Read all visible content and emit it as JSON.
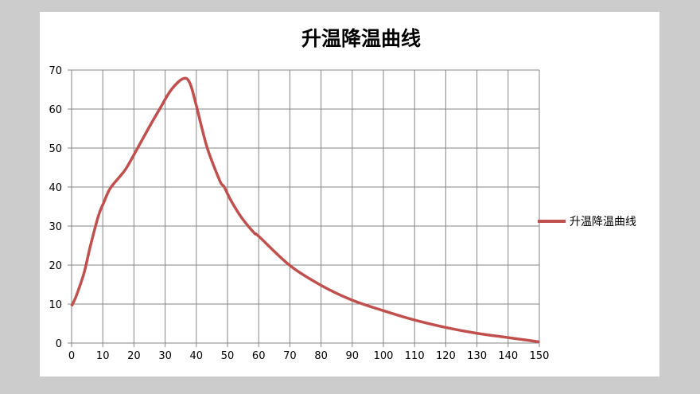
{
  "chart_data": {
    "type": "line",
    "title": "升温降温曲线",
    "xlabel": "",
    "ylabel": "",
    "xlim": [
      0,
      150
    ],
    "ylim": [
      0,
      70
    ],
    "x_ticks": [
      0,
      10,
      20,
      30,
      40,
      50,
      60,
      70,
      80,
      90,
      100,
      110,
      120,
      130,
      140,
      150
    ],
    "y_ticks": [
      0,
      10,
      20,
      30,
      40,
      50,
      60,
      70
    ],
    "grid": true,
    "legend_position": "right",
    "series": [
      {
        "name": "升温降温曲线",
        "color": "#c0504d",
        "x": [
          0,
          1.4,
          4,
          6,
          8.6,
          10.3,
          12.5,
          17,
          20,
          24.7,
          28.6,
          32,
          35.8,
          37.9,
          40,
          41.7,
          43.8,
          47.6,
          48.9,
          51,
          54.4,
          58.6,
          60,
          70,
          80,
          90,
          100,
          110,
          120,
          130,
          140,
          150
        ],
        "y": [
          9.5,
          11.9,
          18,
          24.8,
          32.6,
          36,
          39.8,
          44.2,
          48.3,
          55.1,
          60.5,
          65,
          67.8,
          66.7,
          60.9,
          55.4,
          49.3,
          41.5,
          40.1,
          36.7,
          32.3,
          28.2,
          27.4,
          19.9,
          14.8,
          11.0,
          8.3,
          5.9,
          4.0,
          2.5,
          1.4,
          0.3
        ]
      }
    ]
  }
}
